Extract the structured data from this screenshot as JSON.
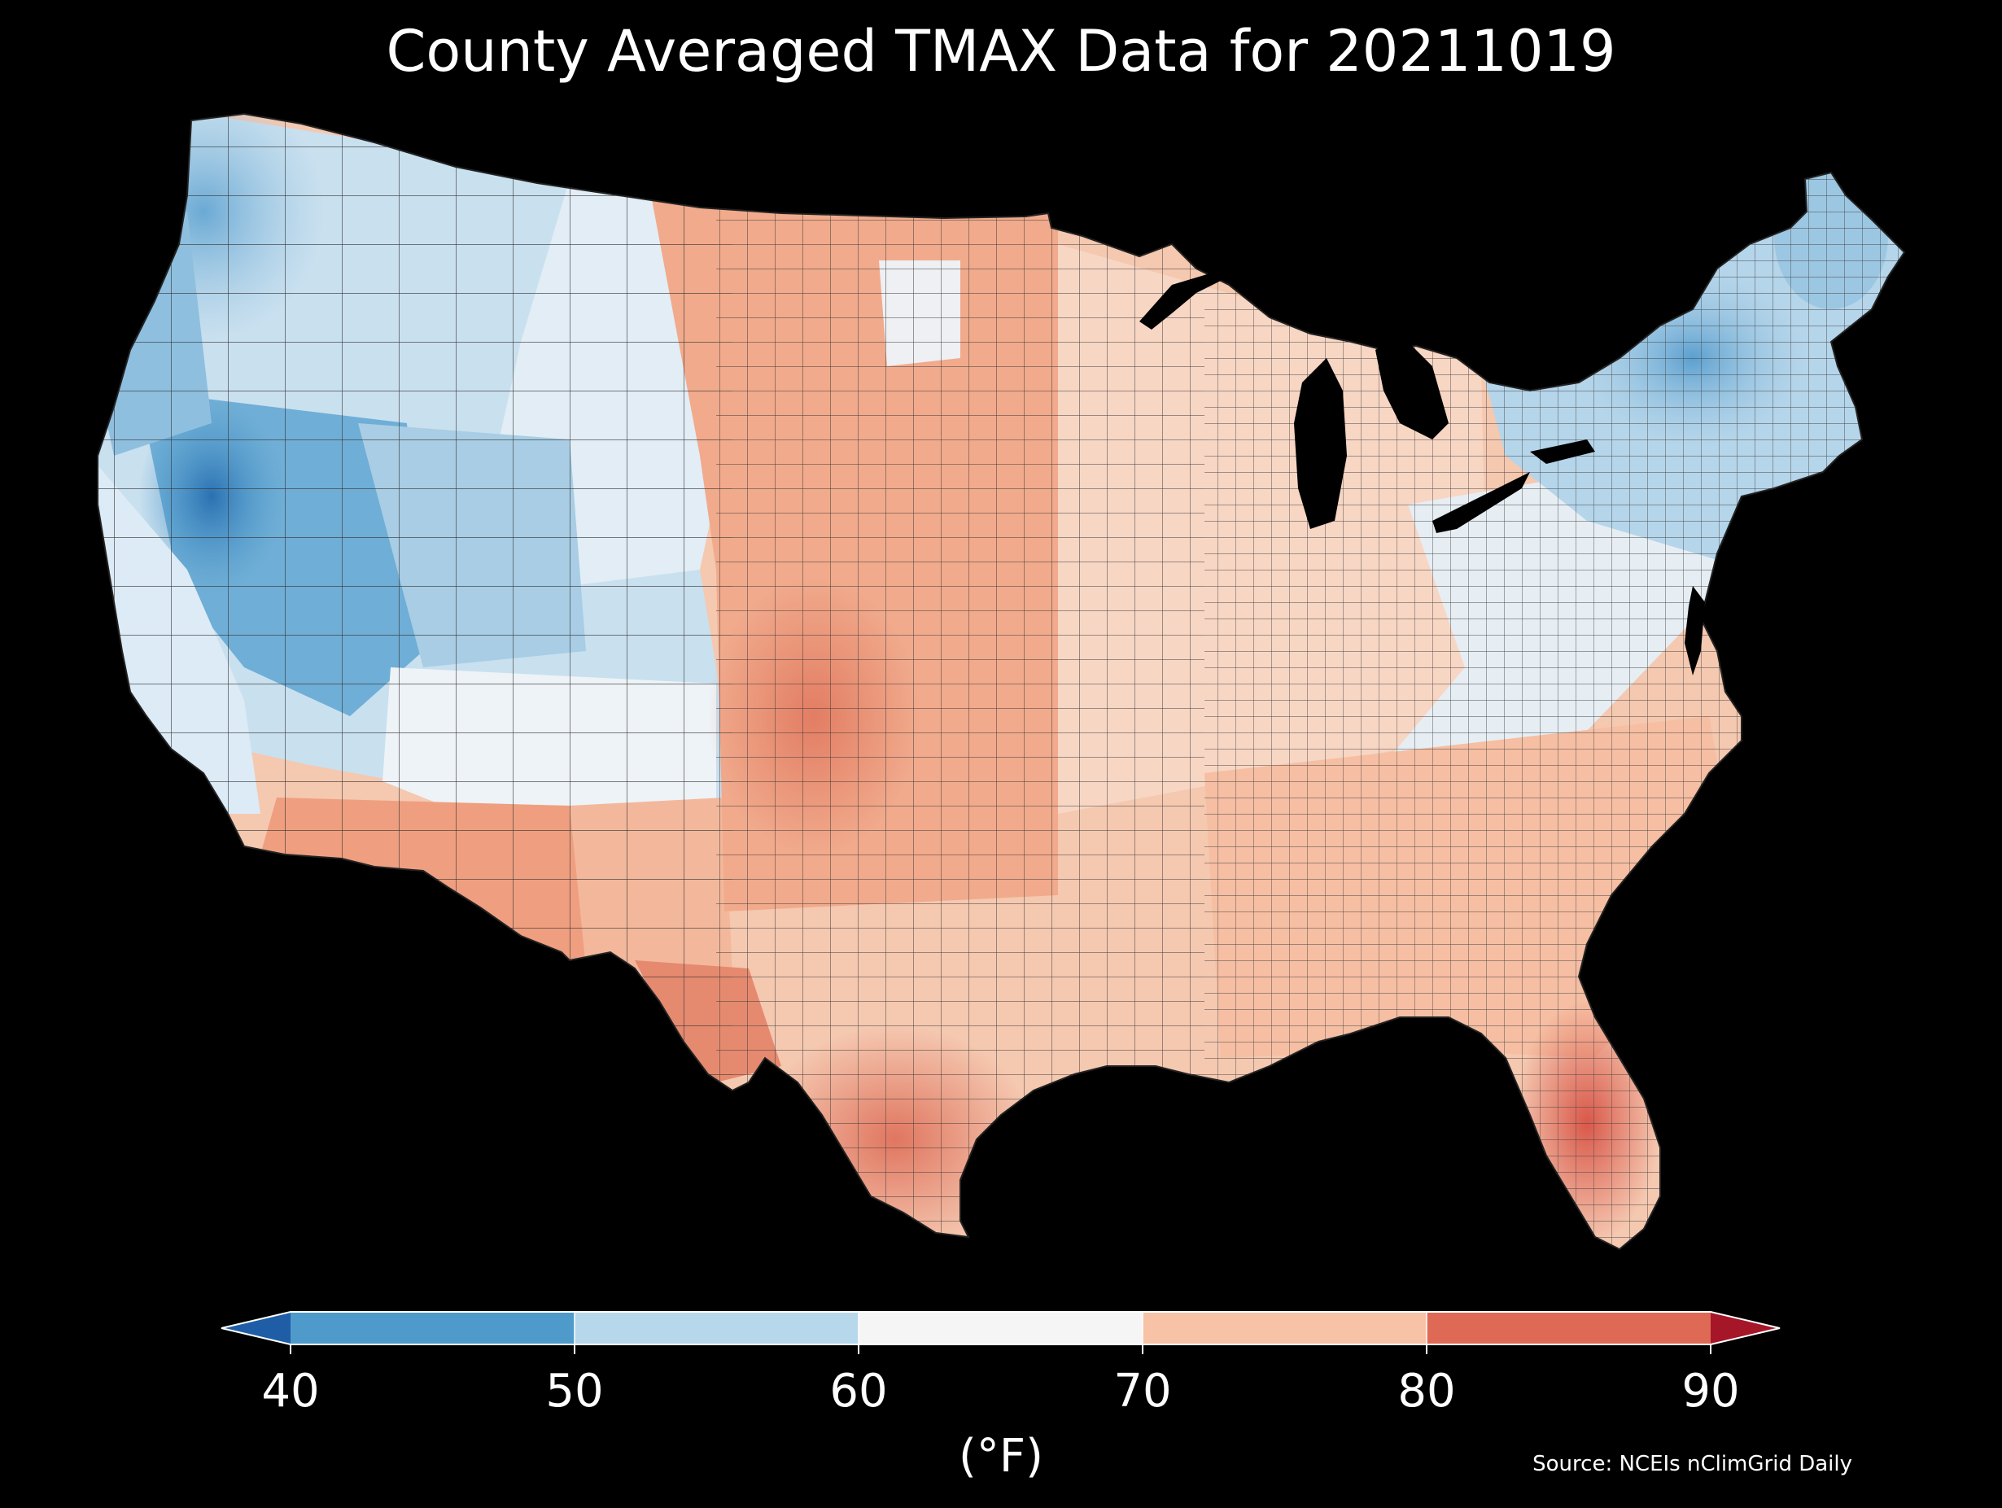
{
  "title": "County Averaged TMAX Data for 20211019",
  "colorbar": {
    "units": "(°F)",
    "ticks": [
      "40",
      "50",
      "60",
      "70",
      "80",
      "90"
    ],
    "bins": [
      {
        "from": 40,
        "to": 50,
        "color": "#4e9bcb"
      },
      {
        "from": 50,
        "to": 60,
        "color": "#b7d8ea"
      },
      {
        "from": 60,
        "to": 70,
        "color": "#f5f5f5"
      },
      {
        "from": 70,
        "to": 80,
        "color": "#f7c2a6"
      },
      {
        "from": 80,
        "to": 90,
        "color": "#de6a55"
      }
    ],
    "under_color": "#1f5ea6",
    "over_color": "#a51628",
    "extend": "both"
  },
  "source": "Source: NCEIs nClimGrid Daily",
  "map": {
    "region": "contiguous-united-states",
    "unit": "county",
    "variable": "TMAX",
    "date": "20211019",
    "background": "#000000",
    "border_color": "#333333",
    "regional_pattern": [
      {
        "region": "pacific-northwest",
        "level": "cool",
        "approx_f": 48
      },
      {
        "region": "northern-rockies",
        "level": "cool",
        "approx_f": 55
      },
      {
        "region": "great-basin-nevada",
        "level": "coldest",
        "approx_f": 45
      },
      {
        "region": "california-coast",
        "level": "mild",
        "approx_f": 58
      },
      {
        "region": "desert-southwest",
        "level": "warm",
        "approx_f": 78
      },
      {
        "region": "great-plains",
        "level": "warm",
        "approx_f": 76
      },
      {
        "region": "west-texas-panhandle",
        "level": "hot",
        "approx_f": 82
      },
      {
        "region": "south-texas",
        "level": "hot",
        "approx_f": 84
      },
      {
        "region": "florida",
        "level": "hot",
        "approx_f": 84
      },
      {
        "region": "southeast",
        "level": "warm",
        "approx_f": 75
      },
      {
        "region": "midwest",
        "level": "mild-warm",
        "approx_f": 71
      },
      {
        "region": "appalachians",
        "level": "mild",
        "approx_f": 64
      },
      {
        "region": "new-england-upstate-ny",
        "level": "cool",
        "approx_f": 52
      }
    ]
  }
}
